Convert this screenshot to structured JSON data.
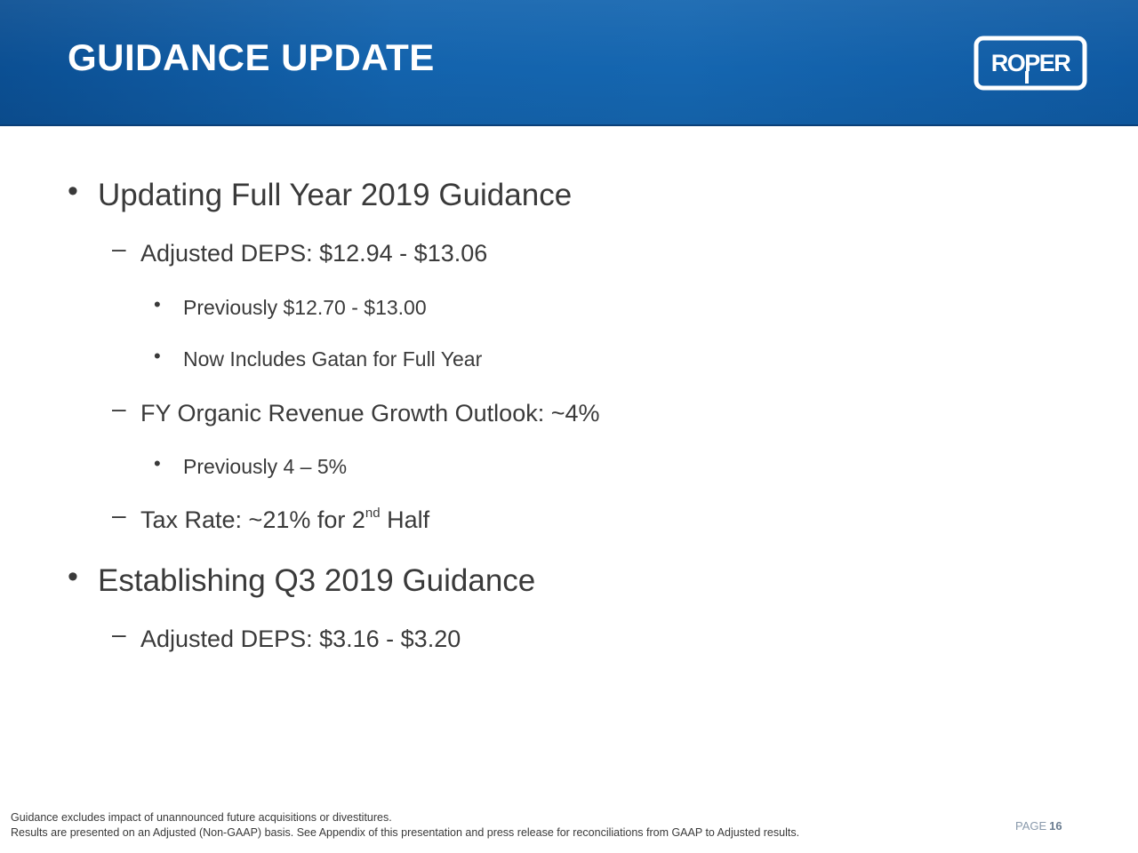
{
  "header": {
    "title": "GUIDANCE UPDATE",
    "logo_text": "ROPER",
    "band_color": "#1363ad"
  },
  "content": {
    "bullet_char": "•",
    "dash_char": "–",
    "fy_heading": "Updating Full Year 2019 Guidance",
    "fy_deps": "Adjusted DEPS: $12.94 - $13.06",
    "fy_deps_previously": "Previously $12.70 - $13.00",
    "fy_deps_gatan": "Now Includes Gatan for Full Year",
    "fy_organic": "FY Organic Revenue Growth Outlook: ~4%",
    "fy_organic_previously": "Previously 4 – 5%",
    "tax_rate_prefix": "Tax Rate: ~21% for 2",
    "tax_rate_superscript": "nd",
    "tax_rate_suffix": " Half",
    "q3_heading": "Establishing Q3 2019 Guidance",
    "q3_deps": "Adjusted DEPS: $3.16 - $3.20"
  },
  "footer": {
    "note_1": "Guidance excludes impact of unannounced future acquisitions or divestitures.",
    "note_2": "Results are presented on an Adjusted (Non-GAAP) basis. See Appendix of this presentation and press release for reconciliations from GAAP to Adjusted results.",
    "page_label": "PAGE",
    "page_number": "16"
  }
}
